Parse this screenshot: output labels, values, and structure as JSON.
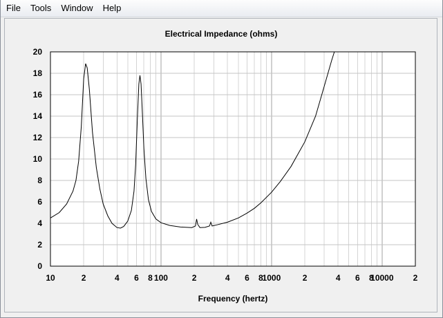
{
  "menu": {
    "items": [
      "File",
      "Tools",
      "Window",
      "Help"
    ]
  },
  "chart_data": {
    "type": "line",
    "title": "Electrical Impedance (ohms)",
    "xlabel": "Frequency (hertz)",
    "ylabel": "",
    "x_scale": "log",
    "xlim": [
      10,
      20000
    ],
    "ylim": [
      0,
      20
    ],
    "grid": true,
    "y_ticks": [
      0,
      2,
      4,
      6,
      8,
      10,
      12,
      14,
      16,
      18,
      20
    ],
    "x_tick_labels": [
      {
        "value": 10,
        "label": "10"
      },
      {
        "value": 20,
        "label": "2"
      },
      {
        "value": 40,
        "label": "4"
      },
      {
        "value": 60,
        "label": "6"
      },
      {
        "value": 80,
        "label": "8"
      },
      {
        "value": 100,
        "label": "100"
      },
      {
        "value": 200,
        "label": "2"
      },
      {
        "value": 400,
        "label": "4"
      },
      {
        "value": 600,
        "label": "6"
      },
      {
        "value": 800,
        "label": "8"
      },
      {
        "value": 1000,
        "label": "1000"
      },
      {
        "value": 2000,
        "label": "2"
      },
      {
        "value": 4000,
        "label": "4"
      },
      {
        "value": 6000,
        "label": "6"
      },
      {
        "value": 8000,
        "label": "8"
      },
      {
        "value": 10000,
        "label": "10000"
      },
      {
        "value": 20000,
        "label": "2"
      }
    ],
    "series": [
      {
        "color": "#000000",
        "points": [
          [
            10,
            4.5
          ],
          [
            12,
            5.0
          ],
          [
            14,
            5.8
          ],
          [
            16,
            7.0
          ],
          [
            17,
            8.0
          ],
          [
            18,
            9.8
          ],
          [
            19,
            13.0
          ],
          [
            20,
            17.5
          ],
          [
            20.8,
            18.9
          ],
          [
            21.5,
            18.5
          ],
          [
            22.5,
            16.5
          ],
          [
            24,
            12.5
          ],
          [
            26,
            9.2
          ],
          [
            28,
            7.2
          ],
          [
            30,
            5.8
          ],
          [
            33,
            4.7
          ],
          [
            36,
            4.0
          ],
          [
            40,
            3.6
          ],
          [
            43,
            3.55
          ],
          [
            46,
            3.7
          ],
          [
            50,
            4.2
          ],
          [
            54,
            5.2
          ],
          [
            57,
            7.0
          ],
          [
            59,
            9.5
          ],
          [
            61,
            13.5
          ],
          [
            63,
            17.0
          ],
          [
            64.5,
            17.8
          ],
          [
            66,
            17.0
          ],
          [
            68,
            14.0
          ],
          [
            70,
            11.0
          ],
          [
            73,
            8.2
          ],
          [
            77,
            6.2
          ],
          [
            82,
            5.1
          ],
          [
            90,
            4.4
          ],
          [
            100,
            4.05
          ],
          [
            120,
            3.8
          ],
          [
            150,
            3.65
          ],
          [
            190,
            3.6
          ],
          [
            205,
            3.75
          ],
          [
            210,
            4.4
          ],
          [
            215,
            3.9
          ],
          [
            225,
            3.6
          ],
          [
            250,
            3.62
          ],
          [
            275,
            3.75
          ],
          [
            282,
            4.1
          ],
          [
            290,
            3.75
          ],
          [
            320,
            3.85
          ],
          [
            400,
            4.1
          ],
          [
            500,
            4.5
          ],
          [
            600,
            4.95
          ],
          [
            700,
            5.4
          ],
          [
            800,
            5.9
          ],
          [
            1000,
            6.9
          ],
          [
            1200,
            7.9
          ],
          [
            1500,
            9.3
          ],
          [
            2000,
            11.6
          ],
          [
            2500,
            14.0
          ],
          [
            3000,
            16.8
          ],
          [
            3500,
            19.2
          ],
          [
            3700,
            20.0
          ]
        ]
      }
    ]
  }
}
